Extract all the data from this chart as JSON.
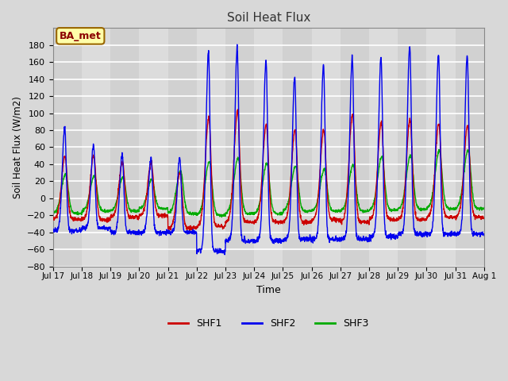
{
  "title": "Soil Heat Flux",
  "xlabel": "Time",
  "ylabel": "Soil Heat Flux (W/m2)",
  "ylim": [
    -80,
    200
  ],
  "yticks": [
    -80,
    -60,
    -40,
    -20,
    0,
    20,
    40,
    60,
    80,
    100,
    120,
    140,
    160,
    180
  ],
  "bg_color": "#d8d8d8",
  "plot_bg_color": "#d8d8d8",
  "grid_color": "white",
  "shf1_color": "#cc0000",
  "shf2_color": "#0000ee",
  "shf3_color": "#00aa00",
  "annotation_text": "BA_met",
  "annotation_bg": "#ffffaa",
  "annotation_border": "#996600",
  "legend_labels": [
    "SHF1",
    "SHF2",
    "SHF3"
  ],
  "n_days": 15,
  "points_per_day": 144,
  "shf1_peaks": [
    50,
    50,
    43,
    42,
    30,
    95,
    102,
    87,
    80,
    80,
    99,
    89,
    93,
    87,
    85
  ],
  "shf2_peaks": [
    84,
    64,
    52,
    48,
    48,
    173,
    176,
    161,
    143,
    156,
    165,
    166,
    179,
    169,
    168
  ],
  "shf3_peaks": [
    28,
    26,
    25,
    22,
    32,
    43,
    47,
    41,
    38,
    34,
    39,
    49,
    51,
    56,
    57
  ],
  "shf1_nights": [
    -25,
    -25,
    -22,
    -20,
    -35,
    -33,
    -28,
    -28,
    -28,
    -25,
    -28,
    -25,
    -25,
    -22,
    -22
  ],
  "shf2_nights": [
    -38,
    -35,
    -40,
    -40,
    -40,
    -62,
    -50,
    -50,
    -48,
    -48,
    -48,
    -45,
    -42,
    -42,
    -42
  ],
  "shf3_nights": [
    -18,
    -15,
    -15,
    -12,
    -18,
    -20,
    -18,
    -18,
    -15,
    -15,
    -15,
    -14,
    -13,
    -12,
    -12
  ]
}
